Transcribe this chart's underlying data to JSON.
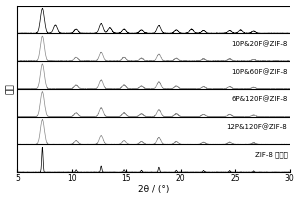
{
  "ylabel": "强度",
  "xlim": [
    5,
    30
  ],
  "x_ticks": [
    5,
    10,
    15,
    20,
    25,
    30
  ],
  "labels": [
    "ZIF-8 标准峰",
    "12P&120F@ZIF-8",
    "6P&120F@ZIF-8",
    "10P&60F@ZIF-8",
    "10P&20F@ZIF-8",
    ""
  ],
  "n_panels": 6,
  "background_color": "#ffffff",
  "gray_color": "#888888",
  "black_color": "#000000",
  "label_fontsize": 5.0,
  "axis_fontsize": 6.5,
  "tick_fontsize": 5.5,
  "std_peak_positions": [
    7.3,
    10.4,
    12.7,
    14.8,
    16.4,
    18.0,
    19.6,
    22.1,
    24.5,
    26.7
  ],
  "std_peak_heights": [
    1.0,
    0.1,
    0.25,
    0.1,
    0.08,
    0.2,
    0.08,
    0.07,
    0.06,
    0.05
  ],
  "std_peak_widths": [
    0.06,
    0.06,
    0.06,
    0.06,
    0.06,
    0.06,
    0.06,
    0.06,
    0.06,
    0.06
  ],
  "comp_peak_positions": [
    7.3,
    10.4,
    12.7,
    14.8,
    16.4,
    18.0,
    19.6,
    22.1,
    24.5,
    26.7
  ],
  "comp_peak_heights": [
    0.8,
    0.12,
    0.28,
    0.12,
    0.09,
    0.22,
    0.09,
    0.07,
    0.07,
    0.05
  ],
  "comp_peak_widths": [
    0.18,
    0.18,
    0.18,
    0.18,
    0.18,
    0.18,
    0.18,
    0.18,
    0.18,
    0.18
  ],
  "top_peak_positions": [
    7.3,
    8.5,
    10.4,
    12.7,
    13.5,
    14.8,
    16.4,
    18.0,
    19.6,
    21.0,
    22.1,
    24.5,
    25.5,
    26.7
  ],
  "top_peak_heights": [
    0.9,
    0.3,
    0.15,
    0.35,
    0.2,
    0.15,
    0.12,
    0.28,
    0.12,
    0.15,
    0.1,
    0.1,
    0.12,
    0.08
  ],
  "top_peak_widths": [
    0.18,
    0.18,
    0.18,
    0.18,
    0.18,
    0.18,
    0.18,
    0.18,
    0.18,
    0.18,
    0.18,
    0.18,
    0.18,
    0.18
  ]
}
